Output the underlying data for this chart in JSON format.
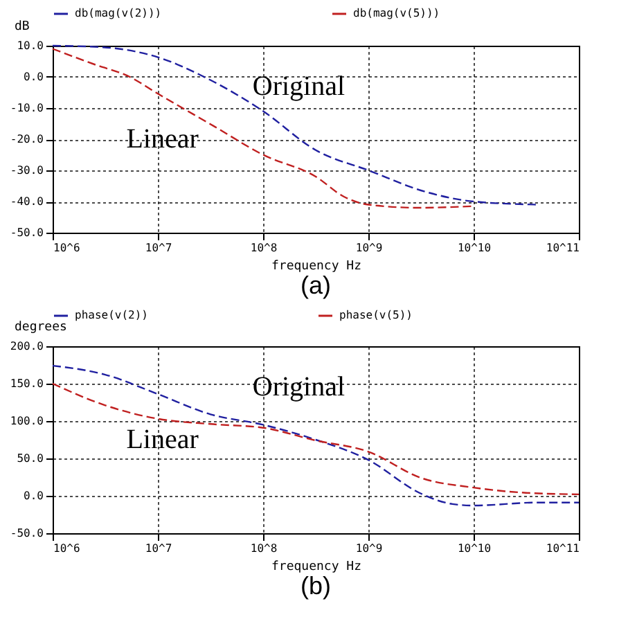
{
  "chart_data": [
    {
      "type": "line",
      "title": "(a)",
      "xlabel": "frequency Hz",
      "ylabel": "dB",
      "log": "x",
      "grid": true,
      "legend": "top",
      "line_style": "dashed",
      "xlim": [
        1000000,
        100000000000
      ],
      "xticks": [
        {
          "value": 1000000,
          "label": "10^6"
        },
        {
          "value": 10000000,
          "label": "10^7"
        },
        {
          "value": 100000000,
          "label": "10^8"
        },
        {
          "value": 1000000000,
          "label": "10^9"
        },
        {
          "value": 10000000000,
          "label": "10^10"
        },
        {
          "value": 100000000000,
          "label": "10^11"
        }
      ],
      "ylim": [
        -50,
        10
      ],
      "yticks": [
        {
          "value": 10,
          "label": "10.0"
        },
        {
          "value": 0,
          "label": "0.0"
        },
        {
          "value": -10,
          "label": "-10.0"
        },
        {
          "value": -20,
          "label": "-20.0"
        },
        {
          "value": -30,
          "label": "-30.0"
        },
        {
          "value": -40,
          "label": "-40.0"
        },
        {
          "value": -50,
          "label": "-50.0"
        }
      ],
      "series": [
        {
          "name": "db(mag(v(2)))",
          "color": "#2020a0",
          "x": [
            1000000,
            3000000,
            10000000,
            27500000,
            100000000,
            316000000,
            1000000000,
            3600000000,
            10000000000,
            40000000000
          ],
          "values": [
            10,
            9.5,
            6.3,
            0,
            -11,
            -23.5,
            -30,
            -37,
            -40,
            -41
          ]
        },
        {
          "name": "db(mag(v(5)))",
          "color": "#c02020",
          "x": [
            1000000,
            2500000,
            5400000,
            10000000,
            34000000,
            100000000,
            316000000,
            590000000,
            1000000000,
            3000000000,
            10000000000
          ],
          "values": [
            9,
            4,
            0,
            -5.4,
            -15.8,
            -25,
            -32,
            -38.5,
            -41,
            -42,
            -41.5
          ]
        }
      ],
      "annotations": [
        "Original",
        "Linear"
      ]
    },
    {
      "type": "line",
      "title": "(b)",
      "xlabel": "frequency Hz",
      "ylabel": "degrees",
      "log": "x",
      "grid": true,
      "legend": "top",
      "line_style": "dashed",
      "xlim": [
        1000000,
        100000000000
      ],
      "xticks": [
        {
          "value": 1000000,
          "label": "10^6"
        },
        {
          "value": 10000000,
          "label": "10^7"
        },
        {
          "value": 100000000,
          "label": "10^8"
        },
        {
          "value": 1000000000,
          "label": "10^9"
        },
        {
          "value": 10000000000,
          "label": "10^10"
        },
        {
          "value": 100000000000,
          "label": "10^11"
        }
      ],
      "ylim": [
        -50,
        200
      ],
      "yticks": [
        {
          "value": 200,
          "label": "200.0"
        },
        {
          "value": 150,
          "label": "150.0"
        },
        {
          "value": 100,
          "label": "100.0"
        },
        {
          "value": 50,
          "label": "50.0"
        },
        {
          "value": 0,
          "label": "0.0"
        },
        {
          "value": -50,
          "label": "-50.0"
        }
      ],
      "series": [
        {
          "name": "phase(v(2))",
          "color": "#2020a0",
          "x": [
            1000000,
            3160000,
            10000000,
            31600000,
            100000000,
            316000000,
            1000000000,
            3160000000,
            6300000000,
            10000000000,
            40000000000,
            100000000000
          ],
          "values": [
            174,
            162,
            136,
            109,
            95,
            75,
            48,
            3,
            -11,
            -13,
            -9,
            -9
          ]
        },
        {
          "name": "phase(v(5))",
          "color": "#c02020",
          "x": [
            1000000,
            3160000,
            10000000,
            31600000,
            100000000,
            316000000,
            1000000000,
            3160000000,
            10000000000,
            31600000000,
            100000000000
          ],
          "values": [
            150,
            121,
            103,
            96,
            91,
            74,
            59,
            24,
            11,
            4,
            2
          ]
        }
      ],
      "annotations": [
        "Original",
        "Linear"
      ]
    }
  ]
}
